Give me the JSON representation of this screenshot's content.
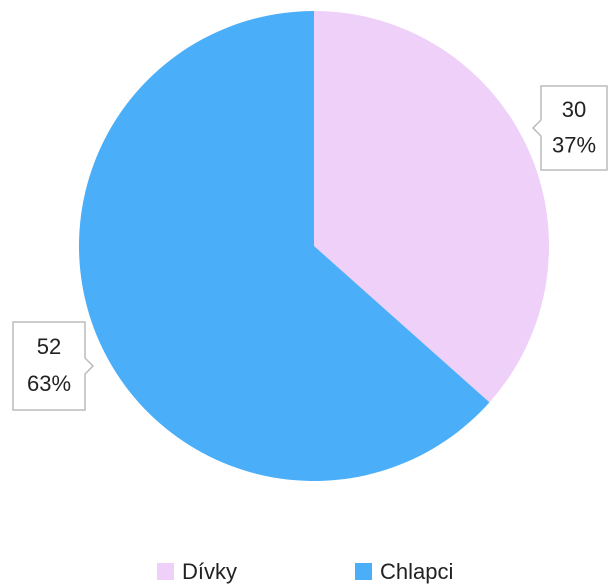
{
  "chart_data": {
    "type": "pie",
    "categories": [
      "Dívky",
      "Chlapci"
    ],
    "values": [
      30,
      52
    ],
    "percent_labels": [
      "37%",
      "63%"
    ],
    "colors": [
      "#eed0f9",
      "#4aaef8"
    ],
    "legend": "bottom"
  }
}
